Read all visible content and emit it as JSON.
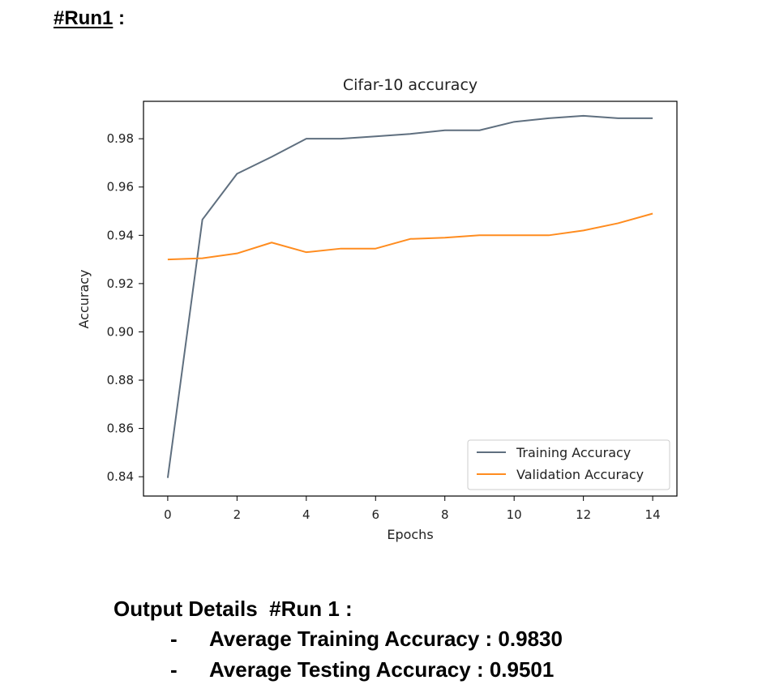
{
  "heading": {
    "label": "#Run1",
    "suffix": " :"
  },
  "chart_data": {
    "type": "line",
    "title": "Cifar-10 accuracy",
    "xlabel": "Epochs",
    "ylabel": "Accuracy",
    "x": [
      0,
      1,
      2,
      3,
      4,
      5,
      6,
      7,
      8,
      9,
      10,
      11,
      12,
      13,
      14
    ],
    "xlim": [
      -0.7,
      14.7
    ],
    "ylim": [
      0.832,
      0.9955
    ],
    "xticks": [
      "0",
      "2",
      "4",
      "6",
      "8",
      "10",
      "12",
      "14"
    ],
    "yticks": [
      "0.84",
      "0.86",
      "0.88",
      "0.90",
      "0.92",
      "0.94",
      "0.96",
      "0.98"
    ],
    "grid": false,
    "legend_position": "lower right",
    "series": [
      {
        "name": "Training Accuracy",
        "color": "#5f6f7f",
        "values": [
          0.8395,
          0.9465,
          0.9655,
          0.9725,
          0.98,
          0.98,
          0.981,
          0.982,
          0.9835,
          0.9835,
          0.987,
          0.9885,
          0.9895,
          0.9885,
          0.9885
        ]
      },
      {
        "name": "Validation Accuracy",
        "color": "#ff8c1f",
        "values": [
          0.93,
          0.9305,
          0.9325,
          0.937,
          0.933,
          0.9345,
          0.9345,
          0.9385,
          0.939,
          0.94,
          0.94,
          0.94,
          0.942,
          0.945,
          0.949
        ]
      }
    ]
  },
  "output": {
    "title": "Output Details  #Run 1 :",
    "items": [
      {
        "dash": "-",
        "text": "Average Training Accuracy : 0.9830"
      },
      {
        "dash": "-",
        "text": "Average Testing Accuracy : 0.9501"
      }
    ]
  }
}
